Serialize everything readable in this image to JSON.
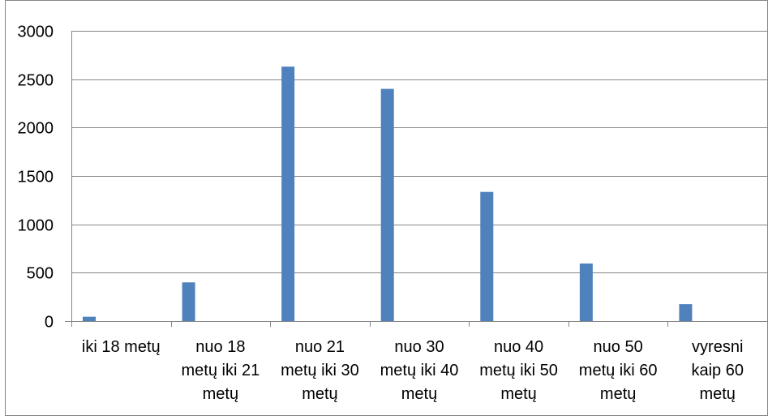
{
  "chart_data": {
    "type": "bar",
    "categories": [
      [
        "iki 18 metų"
      ],
      [
        "nuo 18",
        "metų iki 21",
        "metų"
      ],
      [
        "nuo 21",
        "metų iki 30",
        "metų"
      ],
      [
        "nuo 30",
        "metų iki 40",
        "metų"
      ],
      [
        "nuo 40",
        "metų iki 50",
        "metų"
      ],
      [
        "nuo 50",
        "metų iki 60",
        "metų"
      ],
      [
        "vyresni",
        "kaip 60",
        "metų"
      ]
    ],
    "values": [
      45,
      400,
      2630,
      2400,
      1335,
      595,
      175
    ],
    "y_ticks": [
      "0",
      "500",
      "1000",
      "1500",
      "2000",
      "2500",
      "3000"
    ],
    "ylim": [
      0,
      3000
    ],
    "grid": true,
    "legend": "none",
    "colors": {
      "bar": "#4F81BD",
      "grid": "#868686",
      "axis": "#868686",
      "frame": "#868686"
    }
  }
}
